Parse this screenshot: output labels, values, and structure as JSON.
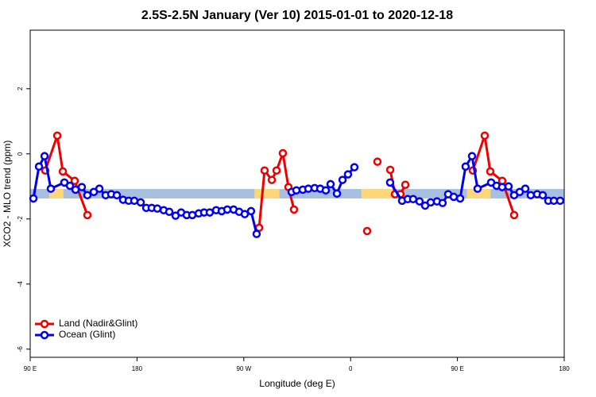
{
  "chart_data": {
    "type": "line",
    "title": "2.5S-2.5N January (Ver 10)   2015-01-01 to 2020-12-18",
    "xlabel": "Longitude (deg E)",
    "ylabel": "XCO2 - MLO trend (ppm)",
    "xlim": [
      90,
      540
    ],
    "ylim": [
      -6.25,
      3.8
    ],
    "xticks": [
      {
        "value": 90,
        "label": "90 E"
      },
      180,
      {
        "value": 270,
        "label": "90 W"
      },
      {
        "value": 360,
        "label": "0"
      },
      {
        "value": 450,
        "label": "90 E"
      },
      {
        "value": 540,
        "label": "180"
      }
    ],
    "yticks": [
      2,
      0,
      -2,
      -4,
      -6
    ],
    "legend": "bottomleft",
    "mask": {
      "ymin": -1.37,
      "ymax": -1.08,
      "ocean_color": "#a8bfe0",
      "land_color": "#fdd77a",
      "land": [
        [
          106,
          118
        ],
        [
          279,
          300
        ],
        [
          369,
          397
        ],
        [
          458,
          478
        ]
      ]
    },
    "series": [
      {
        "name": "Land (Nadir&Glint)",
        "color": "#ee0000",
        "x": [
          102.7,
          112.8,
          117.5,
          127.5,
          138.2,
          null,
          282.9,
          287.5,
          293.6,
          297.6,
          302.9,
          307.6,
          312.3,
          null,
          373.9,
          null,
          382.6,
          null,
          393.4,
          397.4,
          402,
          406.1,
          null,
          463,
          473,
          477.7,
          487.8,
          497.8
        ],
        "values": [
          -0.51,
          0.56,
          -0.54,
          -0.83,
          -1.88,
          null,
          -2.27,
          -0.51,
          -0.8,
          -0.51,
          0.02,
          -1.02,
          -1.71,
          null,
          -2.37,
          null,
          -0.24,
          null,
          -0.49,
          -1.24,
          -1.24,
          -0.95,
          null,
          -0.51,
          0.56,
          -0.54,
          -0.83,
          -1.88
        ]
      },
      {
        "name": "Ocean (Glint)",
        "color": "#0000ee",
        "x": [
          92.7,
          97.4,
          102.1,
          107.4,
          118.8,
          123.5,
          128.2,
          133.5,
          138.2,
          143.6,
          148.3,
          153.6,
          158.3,
          163,
          168.3,
          173,
          177.7,
          183.1,
          187.8,
          192.4,
          197.1,
          202.5,
          207.2,
          212.5,
          217.2,
          221.9,
          226.6,
          232,
          236.6,
          241.3,
          246.7,
          251.4,
          256.1,
          261.4,
          266.1,
          270.8,
          276.1,
          280.8,
          null,
          310.3,
          314.3,
          319.7,
          324.4,
          329.7,
          334.4,
          339.1,
          343.1,
          348.5,
          353.2,
          357.8,
          363.2,
          null,
          393.3,
          403.4,
          408.1,
          412.7,
          418.1,
          422.8,
          427.5,
          432.8,
          437.5,
          442.2,
          446.9,
          452.3,
          456.9,
          462.3,
          467,
          478.4,
          483,
          487.7,
          493.1,
          497.8,
          502.5,
          507.2,
          511.8,
          517.2,
          521.9,
          526.6,
          531.3,
          536.6
        ],
        "values": [
          -1.37,
          -0.39,
          -0.07,
          -1.07,
          -0.88,
          -0.98,
          -1.1,
          -1.02,
          -1.27,
          -1.17,
          -1.07,
          -1.27,
          -1.24,
          -1.27,
          -1.41,
          -1.44,
          -1.44,
          -1.49,
          -1.66,
          -1.66,
          -1.68,
          -1.73,
          -1.78,
          -1.9,
          -1.8,
          -1.88,
          -1.88,
          -1.83,
          -1.8,
          -1.8,
          -1.73,
          -1.76,
          -1.71,
          -1.71,
          -1.78,
          -1.85,
          -1.76,
          -2.46,
          null,
          -1.17,
          -1.12,
          -1.1,
          -1.07,
          -1.05,
          -1.07,
          -1.12,
          -0.93,
          -1.22,
          -0.8,
          -0.63,
          -0.41,
          null,
          -0.88,
          -1.44,
          -1.39,
          -1.39,
          -1.46,
          -1.59,
          -1.49,
          -1.46,
          -1.51,
          -1.24,
          -1.32,
          -1.37,
          -0.39,
          -0.07,
          -1.07,
          -0.88,
          -0.98,
          -1.02,
          -1.0,
          -1.27,
          -1.17,
          -1.07,
          -1.27,
          -1.24,
          -1.27,
          -1.44,
          -1.44,
          -1.44
        ]
      }
    ]
  }
}
